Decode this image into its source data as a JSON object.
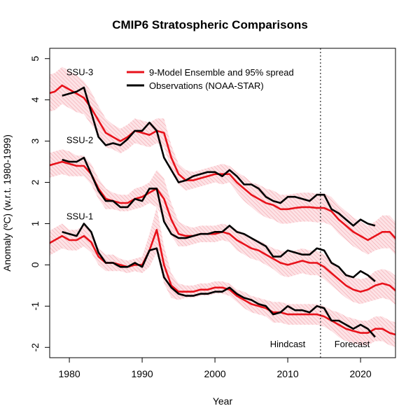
{
  "chart_data": {
    "type": "line",
    "title": "CMIP6 Stratospheric Comparisons",
    "xlabel": "Year",
    "ylabel": "Anomaly (ºC) (w.r.t. 1980-1999)",
    "xlim": [
      1977.3,
      2024.8
    ],
    "ylim": [
      -2.25,
      5.25
    ],
    "x_ticks": [
      1980,
      1990,
      2000,
      2010,
      2020
    ],
    "y_ticks": [
      -2,
      -1,
      0,
      1,
      2,
      3,
      4,
      5
    ],
    "grid": false,
    "legend_position": "top",
    "legend": [
      {
        "label": "9-Model Ensemble and 95% spread",
        "color": "#e8121b"
      },
      {
        "label": "Observations (NOAA-STAR)",
        "color": "#000000"
      }
    ],
    "annotations": {
      "divider_year": 2014.5,
      "hindcast_label": "Hindcast",
      "forecast_label": "Forecast"
    },
    "colors": {
      "model": "#e8121b",
      "observations": "#000000",
      "spread": "#f6b7bd"
    },
    "groups": [
      {
        "label": "SSU-3",
        "model": {
          "x": [
            1977,
            1978,
            1979,
            1980,
            1981,
            1982,
            1983,
            1984,
            1985,
            1986,
            1987,
            1988,
            1989,
            1990,
            1991,
            1992,
            1993,
            1994,
            1995,
            1996,
            1997,
            1998,
            1999,
            2000,
            2001,
            2002,
            2003,
            2004,
            2005,
            2006,
            2007,
            2008,
            2009,
            2010,
            2011,
            2012,
            2013,
            2014,
            2015,
            2016,
            2017,
            2018,
            2019,
            2020,
            2021,
            2022,
            2023,
            2024,
            2025
          ],
          "y": [
            4.15,
            4.2,
            4.35,
            4.25,
            4.15,
            4.05,
            3.8,
            3.5,
            3.2,
            3.1,
            3.0,
            3.1,
            3.25,
            3.2,
            3.15,
            3.25,
            3.2,
            2.6,
            2.2,
            2.05,
            2.05,
            2.1,
            2.15,
            2.2,
            2.2,
            2.2,
            2.0,
            1.85,
            1.7,
            1.6,
            1.5,
            1.45,
            1.35,
            1.35,
            1.38,
            1.4,
            1.4,
            1.38,
            1.38,
            1.3,
            1.1,
            0.95,
            0.8,
            0.7,
            0.6,
            0.7,
            0.8,
            0.8,
            0.6
          ]
        },
        "spread_halfwidth": [
          0.45,
          0.45,
          0.45,
          0.45,
          0.45,
          0.4,
          0.4,
          0.35,
          0.35,
          0.3,
          0.3,
          0.3,
          0.3,
          0.3,
          0.3,
          0.3,
          0.35,
          0.3,
          0.25,
          0.25,
          0.2,
          0.2,
          0.2,
          0.2,
          0.25,
          0.2,
          0.25,
          0.3,
          0.3,
          0.35,
          0.35,
          0.35,
          0.35,
          0.35,
          0.35,
          0.35,
          0.35,
          0.35,
          0.35,
          0.35,
          0.35,
          0.35,
          0.35,
          0.35,
          0.35,
          0.35,
          0.4,
          0.4,
          0.4
        ],
        "obs": {
          "x": [
            1979,
            1980,
            1981,
            1982,
            1983,
            1984,
            1985,
            1986,
            1987,
            1988,
            1989,
            1990,
            1991,
            1992,
            1993,
            1994,
            1995,
            1996,
            1997,
            1998,
            1999,
            2000,
            2001,
            2002,
            2003,
            2004,
            2005,
            2006,
            2007,
            2008,
            2009,
            2010,
            2011,
            2012,
            2013,
            2014,
            2015,
            2016,
            2017,
            2018,
            2019,
            2020,
            2021,
            2022
          ],
          "y": [
            4.1,
            4.15,
            4.2,
            4.3,
            3.7,
            3.1,
            2.9,
            2.95,
            2.9,
            3.05,
            3.25,
            3.25,
            3.45,
            3.25,
            2.6,
            2.3,
            2.0,
            2.05,
            2.15,
            2.2,
            2.25,
            2.25,
            2.15,
            2.3,
            2.15,
            1.95,
            1.95,
            1.85,
            1.65,
            1.55,
            1.5,
            1.65,
            1.65,
            1.6,
            1.55,
            1.7,
            1.7,
            1.35,
            1.25,
            1.1,
            0.95,
            1.1,
            1.0,
            0.95
          ]
        }
      },
      {
        "label": "SSU-2",
        "model": {
          "x": [
            1977,
            1978,
            1979,
            1980,
            1981,
            1982,
            1983,
            1984,
            1985,
            1986,
            1987,
            1988,
            1989,
            1990,
            1991,
            1992,
            1993,
            1994,
            1995,
            1996,
            1997,
            1998,
            1999,
            2000,
            2001,
            2002,
            2003,
            2004,
            2005,
            2006,
            2007,
            2008,
            2009,
            2010,
            2011,
            2012,
            2013,
            2014,
            2015,
            2016,
            2017,
            2018,
            2019,
            2020,
            2021,
            2022,
            2023,
            2024,
            2025
          ],
          "y": [
            2.4,
            2.45,
            2.5,
            2.45,
            2.4,
            2.4,
            2.2,
            1.85,
            1.6,
            1.55,
            1.5,
            1.5,
            1.6,
            1.65,
            1.75,
            1.85,
            1.6,
            1.1,
            0.75,
            0.7,
            0.7,
            0.75,
            0.75,
            0.75,
            0.8,
            0.75,
            0.6,
            0.5,
            0.4,
            0.35,
            0.25,
            0.15,
            0.05,
            0.0,
            0.05,
            0.1,
            0.05,
            0.05,
            -0.05,
            -0.2,
            -0.35,
            -0.5,
            -0.6,
            -0.65,
            -0.6,
            -0.5,
            -0.45,
            -0.5,
            -0.65
          ]
        },
        "spread_halfwidth": [
          0.3,
          0.3,
          0.3,
          0.3,
          0.25,
          0.25,
          0.25,
          0.25,
          0.25,
          0.2,
          0.2,
          0.2,
          0.25,
          0.25,
          0.25,
          0.45,
          0.5,
          0.4,
          0.3,
          0.25,
          0.2,
          0.2,
          0.2,
          0.2,
          0.2,
          0.2,
          0.25,
          0.25,
          0.25,
          0.25,
          0.25,
          0.25,
          0.3,
          0.3,
          0.3,
          0.3,
          0.3,
          0.3,
          0.3,
          0.3,
          0.3,
          0.3,
          0.3,
          0.3,
          0.3,
          0.35,
          0.35,
          0.35,
          0.35
        ],
        "obs": {
          "x": [
            1979,
            1980,
            1981,
            1982,
            1983,
            1984,
            1985,
            1986,
            1987,
            1988,
            1989,
            1990,
            1991,
            1992,
            1993,
            1994,
            1995,
            1996,
            1997,
            1998,
            1999,
            2000,
            2001,
            2002,
            2003,
            2004,
            2005,
            2006,
            2007,
            2008,
            2009,
            2010,
            2011,
            2012,
            2013,
            2014,
            2015,
            2016,
            2017,
            2018,
            2019,
            2020,
            2021,
            2022
          ],
          "y": [
            2.55,
            2.5,
            2.5,
            2.6,
            2.2,
            1.8,
            1.55,
            1.55,
            1.4,
            1.4,
            1.6,
            1.55,
            1.85,
            1.85,
            1.05,
            0.75,
            0.65,
            0.65,
            0.7,
            0.75,
            0.75,
            0.8,
            0.8,
            0.95,
            0.8,
            0.75,
            0.65,
            0.55,
            0.45,
            0.2,
            0.2,
            0.35,
            0.3,
            0.25,
            0.25,
            0.4,
            0.35,
            0.05,
            -0.05,
            -0.25,
            -0.3,
            -0.15,
            -0.25,
            -0.4
          ]
        }
      },
      {
        "label": "SSU-1",
        "model": {
          "x": [
            1977,
            1978,
            1979,
            1980,
            1981,
            1982,
            1983,
            1984,
            1985,
            1986,
            1987,
            1988,
            1989,
            1990,
            1991,
            1992,
            1993,
            1994,
            1995,
            1996,
            1997,
            1998,
            1999,
            2000,
            2001,
            2002,
            2003,
            2004,
            2005,
            2006,
            2007,
            2008,
            2009,
            2010,
            2011,
            2012,
            2013,
            2014,
            2015,
            2016,
            2017,
            2018,
            2019,
            2020,
            2021,
            2022,
            2023,
            2024,
            2025
          ],
          "y": [
            0.5,
            0.6,
            0.7,
            0.6,
            0.6,
            0.7,
            0.55,
            0.2,
            0.05,
            0.05,
            0.0,
            -0.05,
            0.0,
            0.0,
            0.35,
            0.85,
            0.0,
            -0.5,
            -0.65,
            -0.65,
            -0.65,
            -0.6,
            -0.6,
            -0.55,
            -0.55,
            -0.6,
            -0.75,
            -0.85,
            -0.95,
            -1.0,
            -1.05,
            -1.15,
            -1.15,
            -1.2,
            -1.2,
            -1.2,
            -1.2,
            -1.2,
            -1.25,
            -1.35,
            -1.45,
            -1.55,
            -1.6,
            -1.65,
            -1.65,
            -1.55,
            -1.55,
            -1.65,
            -1.7
          ]
        },
        "spread_halfwidth": [
          0.3,
          0.3,
          0.3,
          0.25,
          0.25,
          0.25,
          0.25,
          0.2,
          0.2,
          0.2,
          0.15,
          0.15,
          0.15,
          0.2,
          0.4,
          0.55,
          0.45,
          0.3,
          0.2,
          0.15,
          0.15,
          0.15,
          0.15,
          0.15,
          0.15,
          0.15,
          0.15,
          0.2,
          0.2,
          0.2,
          0.2,
          0.25,
          0.25,
          0.25,
          0.25,
          0.25,
          0.25,
          0.25,
          0.25,
          0.25,
          0.3,
          0.3,
          0.3,
          0.3,
          0.3,
          0.3,
          0.3,
          0.3,
          0.3
        ],
        "obs": {
          "x": [
            1979,
            1980,
            1981,
            1982,
            1983,
            1984,
            1985,
            1986,
            1987,
            1988,
            1989,
            1990,
            1991,
            1992,
            1993,
            1994,
            1995,
            1996,
            1997,
            1998,
            1999,
            2000,
            2001,
            2002,
            2003,
            2004,
            2005,
            2006,
            2007,
            2008,
            2009,
            2010,
            2011,
            2012,
            2013,
            2014,
            2015,
            2016,
            2017,
            2018,
            2019,
            2020,
            2021,
            2022
          ],
          "y": [
            0.8,
            0.75,
            0.7,
            1.0,
            0.8,
            0.3,
            0.05,
            0.05,
            -0.05,
            -0.05,
            0.05,
            -0.05,
            0.35,
            0.4,
            -0.3,
            -0.55,
            -0.7,
            -0.75,
            -0.75,
            -0.7,
            -0.7,
            -0.65,
            -0.65,
            -0.55,
            -0.7,
            -0.8,
            -0.85,
            -0.95,
            -1.0,
            -1.2,
            -1.15,
            -1.0,
            -1.1,
            -1.1,
            -1.15,
            -1.0,
            -1.05,
            -1.35,
            -1.35,
            -1.45,
            -1.55,
            -1.45,
            -1.55,
            -1.75
          ]
        }
      }
    ]
  }
}
